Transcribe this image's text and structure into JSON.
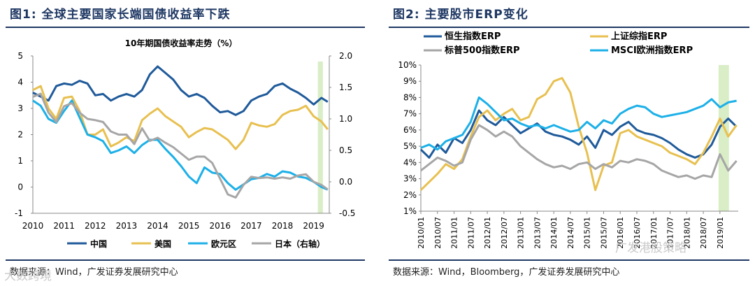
{
  "left": {
    "figure_label": "图1:",
    "figure_title": "全球主要国家长端国债收益率下跌",
    "source": "数据来源：Wind，广发证券发展研究中心",
    "chart_data": {
      "type": "line",
      "title": "10年期国债收益率走势（%）",
      "x_ticks": [
        "2010",
        "2011",
        "2012",
        "2013",
        "2014",
        "2015",
        "2016",
        "2017",
        "2018",
        "2019"
      ],
      "y_left_ticks": [
        "5",
        "4",
        "3",
        "2",
        "1",
        "0",
        "-1"
      ],
      "y_right_ticks": [
        "2.0",
        "1.5",
        "1.0",
        "0.5",
        "0.0",
        "-0.5"
      ],
      "ylim_left": [
        -1,
        5
      ],
      "ylim_right": [
        -0.5,
        2.0
      ],
      "highlight_range": [
        2019.0,
        2019.25
      ],
      "series": [
        {
          "name": "中国",
          "axis": "left",
          "color": "#1f5a9a",
          "x": [
            2010.0,
            2010.25,
            2010.5,
            2010.75,
            2011.0,
            2011.25,
            2011.5,
            2011.75,
            2012.0,
            2012.25,
            2012.5,
            2012.75,
            2013.0,
            2013.25,
            2013.5,
            2013.75,
            2014.0,
            2014.25,
            2014.5,
            2014.75,
            2015.0,
            2015.25,
            2015.5,
            2015.75,
            2016.0,
            2016.25,
            2016.5,
            2016.75,
            2017.0,
            2017.25,
            2017.5,
            2017.75,
            2018.0,
            2018.25,
            2018.5,
            2018.75,
            2019.0,
            2019.25,
            2019.45
          ],
          "values": [
            3.6,
            3.45,
            3.3,
            3.85,
            3.95,
            3.9,
            4.05,
            3.95,
            3.5,
            3.55,
            3.3,
            3.45,
            3.55,
            3.45,
            3.7,
            4.3,
            4.6,
            4.35,
            4.1,
            3.7,
            3.45,
            3.55,
            3.4,
            3.1,
            2.85,
            2.9,
            2.75,
            2.9,
            3.3,
            3.45,
            3.55,
            3.85,
            3.95,
            3.75,
            3.6,
            3.4,
            3.15,
            3.4,
            3.25
          ]
        },
        {
          "name": "美国",
          "axis": "left",
          "color": "#e8c050",
          "x": [
            2010.0,
            2010.25,
            2010.5,
            2010.75,
            2011.0,
            2011.25,
            2011.5,
            2011.75,
            2012.0,
            2012.25,
            2012.5,
            2012.75,
            2013.0,
            2013.25,
            2013.5,
            2013.75,
            2014.0,
            2014.25,
            2014.5,
            2014.75,
            2015.0,
            2015.25,
            2015.5,
            2015.75,
            2016.0,
            2016.25,
            2016.5,
            2016.75,
            2017.0,
            2017.25,
            2017.5,
            2017.75,
            2018.0,
            2018.25,
            2018.5,
            2018.75,
            2019.0,
            2019.25,
            2019.45
          ],
          "values": [
            3.7,
            3.85,
            3.0,
            2.6,
            3.4,
            3.45,
            2.9,
            2.0,
            2.0,
            2.2,
            1.55,
            1.7,
            1.9,
            1.75,
            2.55,
            2.8,
            3.0,
            2.7,
            2.5,
            2.3,
            1.9,
            2.1,
            2.25,
            2.2,
            2.0,
            1.8,
            1.45,
            1.8,
            2.45,
            2.35,
            2.3,
            2.4,
            2.75,
            2.9,
            2.95,
            3.1,
            2.7,
            2.5,
            2.2
          ]
        },
        {
          "name": "欧元区",
          "axis": "left",
          "color": "#1cb0e8",
          "x": [
            2010.0,
            2010.25,
            2010.5,
            2010.75,
            2011.0,
            2011.25,
            2011.5,
            2011.75,
            2012.0,
            2012.25,
            2012.5,
            2012.75,
            2013.0,
            2013.25,
            2013.5,
            2013.75,
            2014.0,
            2014.25,
            2014.5,
            2014.75,
            2015.0,
            2015.25,
            2015.5,
            2015.75,
            2016.0,
            2016.25,
            2016.5,
            2016.75,
            2017.0,
            2017.25,
            2017.5,
            2017.75,
            2018.0,
            2018.25,
            2018.5,
            2018.75,
            2019.0,
            2019.25,
            2019.45
          ],
          "values": [
            3.3,
            3.1,
            2.6,
            2.45,
            2.9,
            3.3,
            2.65,
            2.0,
            1.9,
            1.75,
            1.3,
            1.4,
            1.55,
            1.3,
            1.6,
            1.8,
            1.8,
            1.45,
            1.15,
            0.8,
            0.4,
            0.15,
            0.75,
            0.55,
            0.5,
            0.15,
            -0.1,
            0.1,
            0.3,
            0.35,
            0.5,
            0.4,
            0.6,
            0.55,
            0.4,
            0.35,
            0.2,
            0.0,
            -0.1
          ]
        },
        {
          "name": "日本（右轴）",
          "axis": "right",
          "color": "#a6a6a6",
          "x": [
            2010.0,
            2010.25,
            2010.5,
            2010.75,
            2011.0,
            2011.25,
            2011.5,
            2011.75,
            2012.0,
            2012.25,
            2012.5,
            2012.75,
            2013.0,
            2013.25,
            2013.5,
            2013.75,
            2014.0,
            2014.25,
            2014.5,
            2014.75,
            2015.0,
            2015.25,
            2015.5,
            2015.75,
            2016.0,
            2016.25,
            2016.5,
            2016.75,
            2017.0,
            2017.25,
            2017.5,
            2017.75,
            2018.0,
            2018.25,
            2018.5,
            2018.75,
            2019.0,
            2019.25,
            2019.45
          ],
          "values": [
            1.35,
            1.4,
            1.1,
            0.95,
            1.2,
            1.25,
            1.1,
            1.0,
            0.98,
            0.95,
            0.8,
            0.75,
            0.75,
            0.6,
            0.85,
            0.65,
            0.7,
            0.62,
            0.55,
            0.45,
            0.35,
            0.4,
            0.4,
            0.3,
            0.05,
            -0.2,
            -0.25,
            -0.05,
            0.08,
            0.06,
            0.07,
            0.05,
            0.07,
            0.05,
            0.1,
            0.12,
            0.0,
            -0.05,
            -0.12
          ]
        }
      ],
      "legend": [
        "中国",
        "美国",
        "欧元区",
        "日本（右轴）"
      ],
      "legend_position": "bottom"
    }
  },
  "right": {
    "figure_label": "图2:",
    "figure_title": "主要股市ERP变化",
    "source": "数据来源：Wind，Bloomberg，广发证券发展研究中心",
    "chart_data": {
      "type": "line",
      "title": "",
      "x_ticks": [
        "2010/01",
        "2010/07",
        "2011/01",
        "2011/07",
        "2012/01",
        "2012/07",
        "2013/01",
        "2013/07",
        "2014/01",
        "2014/07",
        "2015/01",
        "2015/07",
        "2016/01",
        "2016/07",
        "2017/01",
        "2017/07",
        "2018/01",
        "2018/07",
        "2019/01"
      ],
      "y_ticks": [
        "10%",
        "9%",
        "8%",
        "7%",
        "6%",
        "5%",
        "4%",
        "3%",
        "2%",
        "1%"
      ],
      "ylim": [
        1,
        10
      ],
      "highlight_range": [
        2019.0,
        2019.25
      ],
      "series": [
        {
          "name": "恒生指数ERP",
          "color": "#1f5a9a",
          "x": [
            2010.0,
            2010.25,
            2010.5,
            2010.75,
            2011.0,
            2011.25,
            2011.5,
            2011.75,
            2012.0,
            2012.25,
            2012.5,
            2012.75,
            2013.0,
            2013.25,
            2013.5,
            2013.75,
            2014.0,
            2014.25,
            2014.5,
            2014.75,
            2015.0,
            2015.25,
            2015.5,
            2015.75,
            2016.0,
            2016.25,
            2016.5,
            2016.75,
            2017.0,
            2017.25,
            2017.5,
            2017.75,
            2018.0,
            2018.25,
            2018.5,
            2018.75,
            2019.0,
            2019.25,
            2019.5
          ],
          "values": [
            4.8,
            4.3,
            5.1,
            4.6,
            5.5,
            5.2,
            6.0,
            7.2,
            6.6,
            6.3,
            6.8,
            6.3,
            5.8,
            6.1,
            6.4,
            5.9,
            5.7,
            5.6,
            5.4,
            5.1,
            5.6,
            4.9,
            6.0,
            5.7,
            6.2,
            6.5,
            6.0,
            5.8,
            5.7,
            5.5,
            5.2,
            4.8,
            4.5,
            4.3,
            4.5,
            5.1,
            6.2,
            6.7,
            6.2
          ]
        },
        {
          "name": "上证综指ERP",
          "color": "#e8c050",
          "x": [
            2010.0,
            2010.25,
            2010.5,
            2010.75,
            2011.0,
            2011.25,
            2011.5,
            2011.75,
            2012.0,
            2012.25,
            2012.5,
            2012.75,
            2013.0,
            2013.25,
            2013.5,
            2013.75,
            2014.0,
            2014.25,
            2014.5,
            2014.75,
            2015.0,
            2015.25,
            2015.5,
            2015.75,
            2016.0,
            2016.25,
            2016.5,
            2016.75,
            2017.0,
            2017.25,
            2017.5,
            2017.75,
            2018.0,
            2018.25,
            2018.5,
            2018.75,
            2019.0,
            2019.25,
            2019.5
          ],
          "values": [
            2.3,
            2.8,
            3.3,
            3.9,
            3.6,
            4.2,
            5.6,
            6.8,
            7.2,
            6.6,
            7.0,
            7.3,
            6.6,
            6.8,
            7.9,
            8.2,
            9.0,
            9.2,
            8.3,
            6.2,
            4.6,
            2.3,
            3.8,
            4.0,
            5.8,
            6.0,
            5.6,
            5.4,
            5.2,
            5.0,
            4.6,
            4.4,
            4.2,
            3.9,
            4.6,
            5.6,
            6.7,
            5.6,
            6.3
          ]
        },
        {
          "name": "标普500指数ERP",
          "color": "#a6a6a6",
          "x": [
            2010.0,
            2010.25,
            2010.5,
            2010.75,
            2011.0,
            2011.25,
            2011.5,
            2011.75,
            2012.0,
            2012.25,
            2012.5,
            2012.75,
            2013.0,
            2013.25,
            2013.5,
            2013.75,
            2014.0,
            2014.25,
            2014.5,
            2014.75,
            2015.0,
            2015.25,
            2015.5,
            2015.75,
            2016.0,
            2016.25,
            2016.5,
            2016.75,
            2017.0,
            2017.25,
            2017.5,
            2017.75,
            2018.0,
            2018.25,
            2018.5,
            2018.75,
            2019.0,
            2019.25,
            2019.5
          ],
          "values": [
            3.5,
            3.9,
            4.3,
            4.1,
            3.8,
            4.0,
            5.4,
            6.3,
            6.0,
            5.6,
            5.9,
            5.6,
            5.0,
            4.6,
            4.2,
            3.9,
            3.7,
            3.8,
            3.6,
            3.9,
            4.0,
            3.6,
            3.9,
            3.7,
            4.1,
            4.0,
            4.2,
            4.1,
            3.9,
            3.5,
            3.3,
            3.1,
            3.2,
            3.0,
            3.2,
            3.1,
            4.5,
            3.5,
            4.1
          ]
        },
        {
          "name": "MSCI欧洲指数ERP",
          "color": "#1cb0e8",
          "x": [
            2010.0,
            2010.25,
            2010.5,
            2010.75,
            2011.0,
            2011.25,
            2011.5,
            2011.75,
            2012.0,
            2012.25,
            2012.5,
            2012.75,
            2013.0,
            2013.25,
            2013.5,
            2013.75,
            2014.0,
            2014.25,
            2014.5,
            2014.75,
            2015.0,
            2015.25,
            2015.5,
            2015.75,
            2016.0,
            2016.25,
            2016.5,
            2016.75,
            2017.0,
            2017.25,
            2017.5,
            2017.75,
            2018.0,
            2018.25,
            2018.5,
            2018.75,
            2019.0,
            2019.25,
            2019.5
          ],
          "values": [
            4.9,
            5.1,
            4.8,
            5.3,
            5.5,
            5.7,
            6.5,
            8.0,
            7.6,
            7.1,
            6.6,
            6.7,
            6.4,
            6.2,
            6.3,
            6.1,
            6.3,
            6.1,
            5.9,
            6.0,
            6.5,
            6.1,
            6.6,
            6.4,
            7.0,
            7.3,
            7.5,
            7.4,
            7.0,
            6.8,
            6.9,
            7.0,
            7.1,
            7.3,
            7.5,
            7.9,
            7.4,
            7.7,
            7.8
          ]
        }
      ],
      "legend": [
        "恒生指数ERP",
        "上证综指ERP",
        "标普500指数ERP",
        "MSCI欧洲指数ERP"
      ],
      "legend_position": "top"
    }
  },
  "watermarks": {
    "bottom_left": "大数跨境",
    "bottom_right": "广发港股策略"
  }
}
